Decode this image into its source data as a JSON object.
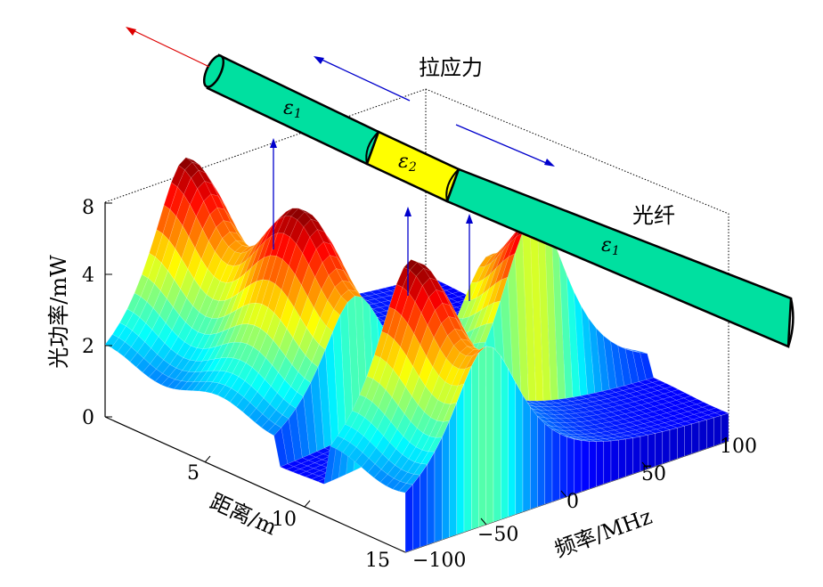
{
  "chart_data": {
    "type": "surface",
    "zlabel": "光功率/mW",
    "xlabel": "距离/m",
    "ylabel": "频率/MHz",
    "z_ticks": [
      "0",
      "2",
      "4",
      "8"
    ],
    "distance_ticks": [
      "5",
      "10",
      "15"
    ],
    "frequency_ticks": [
      "−100",
      "−50",
      "0",
      "50",
      "100"
    ],
    "distance_range": [
      0,
      15
    ],
    "frequency_range": [
      -100,
      100
    ],
    "peak_value_mw": 6.5,
    "base_value_mw": 1.8,
    "segments": [
      {
        "region": "fiber section 1",
        "distance_start": 0,
        "distance_end": 8.5,
        "peak_frequency_mhz": -50
      },
      {
        "region": "fiber section 2 (strained)",
        "distance_start": 8.5,
        "distance_end": 11,
        "peak_frequency_mhz": 30
      },
      {
        "region": "fiber section 3",
        "distance_start": 11,
        "distance_end": 15,
        "peak_frequency_mhz": -50
      }
    ],
    "annotations": {
      "stress": "拉应力",
      "fiber": "光纤",
      "eps1_left": "ε",
      "eps1_left_sub": "1",
      "eps2": "ε",
      "eps2_sub": "2",
      "eps1_right": "ε",
      "eps1_right_sub": "1"
    },
    "colors": {
      "fiber_segment": "#00e0a0",
      "strained_segment": "#ffff00",
      "tension_arrow": "#0000cc",
      "pull_arrow": "#dd0000"
    }
  }
}
